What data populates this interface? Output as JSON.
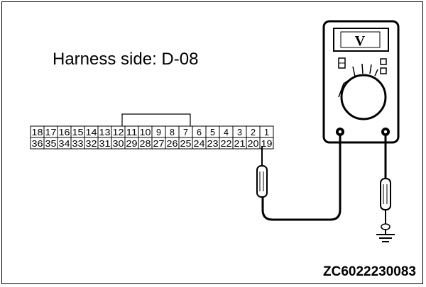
{
  "diagram": {
    "title": "Harness side: D-08",
    "figure_code": "ZC6022230083",
    "connector": {
      "top_row": [
        "18",
        "17",
        "16",
        "15",
        "14",
        "13",
        "12",
        "11",
        "10",
        "9",
        "8",
        "7",
        "6",
        "5",
        "4",
        "3",
        "2",
        "1"
      ],
      "bottom_row": [
        "36",
        "35",
        "34",
        "33",
        "32",
        "31",
        "30",
        "29",
        "28",
        "27",
        "26",
        "25",
        "24",
        "23",
        "22",
        "21",
        "20",
        "19"
      ]
    },
    "meter": {
      "display_symbol": "V"
    }
  }
}
